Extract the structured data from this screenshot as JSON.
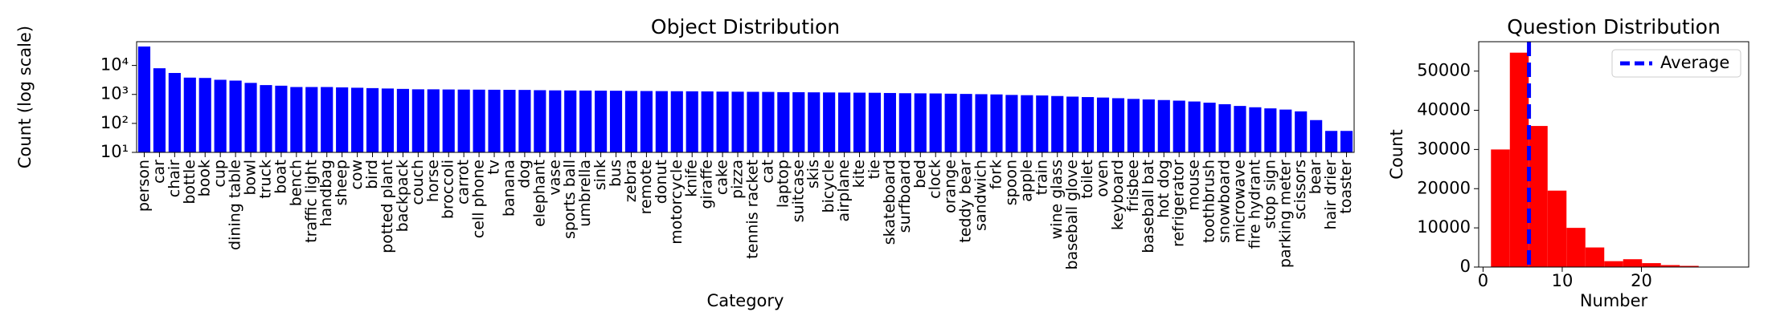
{
  "chart_data": [
    {
      "type": "bar",
      "title": "Object Distribution",
      "xlabel": "Category",
      "ylabel": "Count (log scale)",
      "categories": [
        "person",
        "car",
        "chair",
        "bottle",
        "book",
        "cup",
        "dining table",
        "bowl",
        "truck",
        "boat",
        "bench",
        "traffic light",
        "handbag",
        "sheep",
        "cow",
        "bird",
        "potted plant",
        "backpack",
        "couch",
        "horse",
        "broccoli",
        "carrot",
        "cell phone",
        "tv",
        "banana",
        "dog",
        "elephant",
        "vase",
        "sports ball",
        "umbrella",
        "sink",
        "bus",
        "zebra",
        "remote",
        "donut",
        "motorcycle",
        "knife",
        "giraffe",
        "cake",
        "pizza",
        "tennis racket",
        "cat",
        "laptop",
        "suitcase",
        "skis",
        "bicycle",
        "airplane",
        "kite",
        "tie",
        "skateboard",
        "surfboard",
        "bed",
        "clock",
        "orange",
        "teddy bear",
        "sandwich",
        "fork",
        "spoon",
        "apple",
        "train",
        "wine glass",
        "baseball glove",
        "toilet",
        "oven",
        "keyboard",
        "frisbee",
        "baseball bat",
        "hot dog",
        "refrigerator",
        "mouse",
        "toothbrush",
        "snowboard",
        "microwave",
        "fire hydrant",
        "stop sign",
        "parking meter",
        "scissors",
        "bear",
        "hair drier",
        "toaster"
      ],
      "values": [
        45000,
        8000,
        5500,
        3800,
        3700,
        3200,
        3000,
        2500,
        2100,
        2000,
        1800,
        1800,
        1800,
        1750,
        1700,
        1650,
        1600,
        1550,
        1500,
        1500,
        1480,
        1470,
        1460,
        1450,
        1440,
        1430,
        1400,
        1380,
        1370,
        1360,
        1350,
        1340,
        1320,
        1310,
        1300,
        1290,
        1280,
        1270,
        1250,
        1240,
        1230,
        1220,
        1200,
        1190,
        1180,
        1170,
        1160,
        1150,
        1140,
        1120,
        1100,
        1090,
        1080,
        1060,
        1040,
        1020,
        1000,
        960,
        940,
        920,
        880,
        840,
        810,
        780,
        740,
        700,
        670,
        640,
        610,
        570,
        520,
        460,
        400,
        360,
        330,
        300,
        260,
        130,
        55,
        55
      ],
      "color": "#0000ff",
      "log_scale": true,
      "ylim": [
        10,
        66000
      ],
      "yticks": [
        {
          "value": 10,
          "label": "10¹"
        },
        {
          "value": 100,
          "label": "10²"
        },
        {
          "value": 1000,
          "label": "10³"
        },
        {
          "value": 10000,
          "label": "10⁴"
        }
      ]
    },
    {
      "type": "histogram",
      "title": "Question Distribution",
      "xlabel": "Number",
      "ylabel": "Count",
      "bins": [
        1,
        3.385,
        5.769,
        8.154,
        10.538,
        12.923,
        15.308,
        17.692,
        20.077,
        22.462,
        24.846,
        27.231,
        29.615,
        32
      ],
      "values": [
        30000,
        54700,
        36000,
        19500,
        10000,
        5000,
        1500,
        2000,
        1000,
        500,
        300,
        100,
        100
      ],
      "color": "#ff0000",
      "xlim": [
        -0.55,
        33.55
      ],
      "ylim": [
        0,
        57500
      ],
      "xticks": [
        0,
        10,
        20
      ],
      "yticks": [
        0,
        10000,
        20000,
        30000,
        40000,
        50000
      ],
      "lines": [
        {
          "name": "Average",
          "value": 5.8,
          "color": "#0000ff"
        }
      ],
      "legend": "upper right"
    }
  ]
}
